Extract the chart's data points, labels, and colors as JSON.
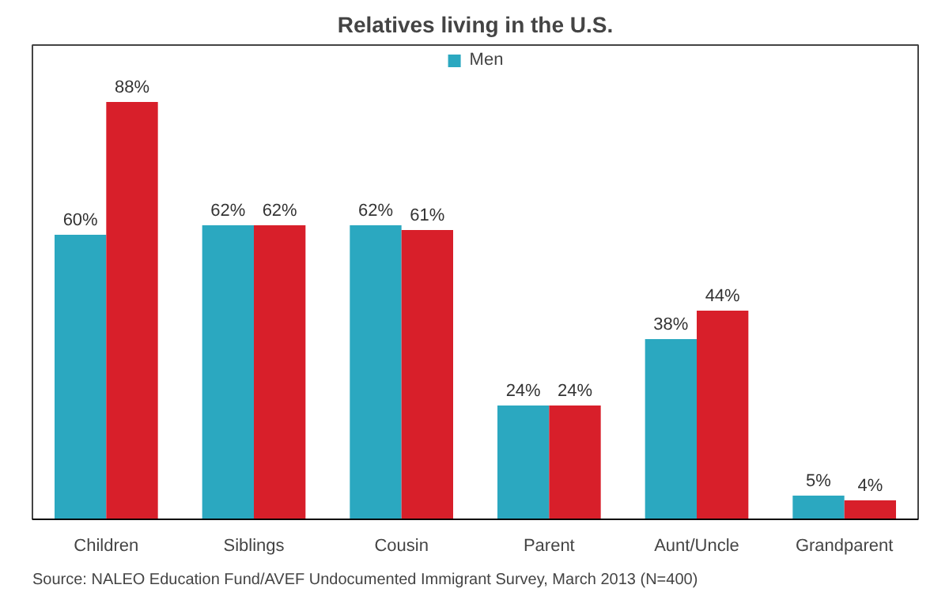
{
  "chart_data": {
    "type": "bar",
    "title": "Relatives living in the U.S.",
    "categories": [
      "Children",
      "Siblings",
      "Cousin",
      "Parent",
      "Aunt/Uncle",
      "Grandparent"
    ],
    "series": [
      {
        "name": "Men",
        "color": "#2ba8c0",
        "values": [
          60,
          62,
          62,
          24,
          38,
          5
        ],
        "value_labels": [
          "60%",
          "62%",
          "62%",
          "24%",
          "38%",
          "5%"
        ]
      },
      {
        "color": "#d81f2a",
        "values": [
          88,
          62,
          61,
          24,
          44,
          4
        ],
        "value_labels": [
          "88%",
          "62%",
          "61%",
          "24%",
          "44%",
          "4%"
        ]
      }
    ],
    "ylim": [
      0,
      100
    ],
    "tick_labels": "x",
    "grid": false,
    "legend": "top",
    "annotations": [
      "Source: NALEO Education Fund/AVEF Undocumented Immigrant Survey, March 2013  (N=400)"
    ]
  }
}
